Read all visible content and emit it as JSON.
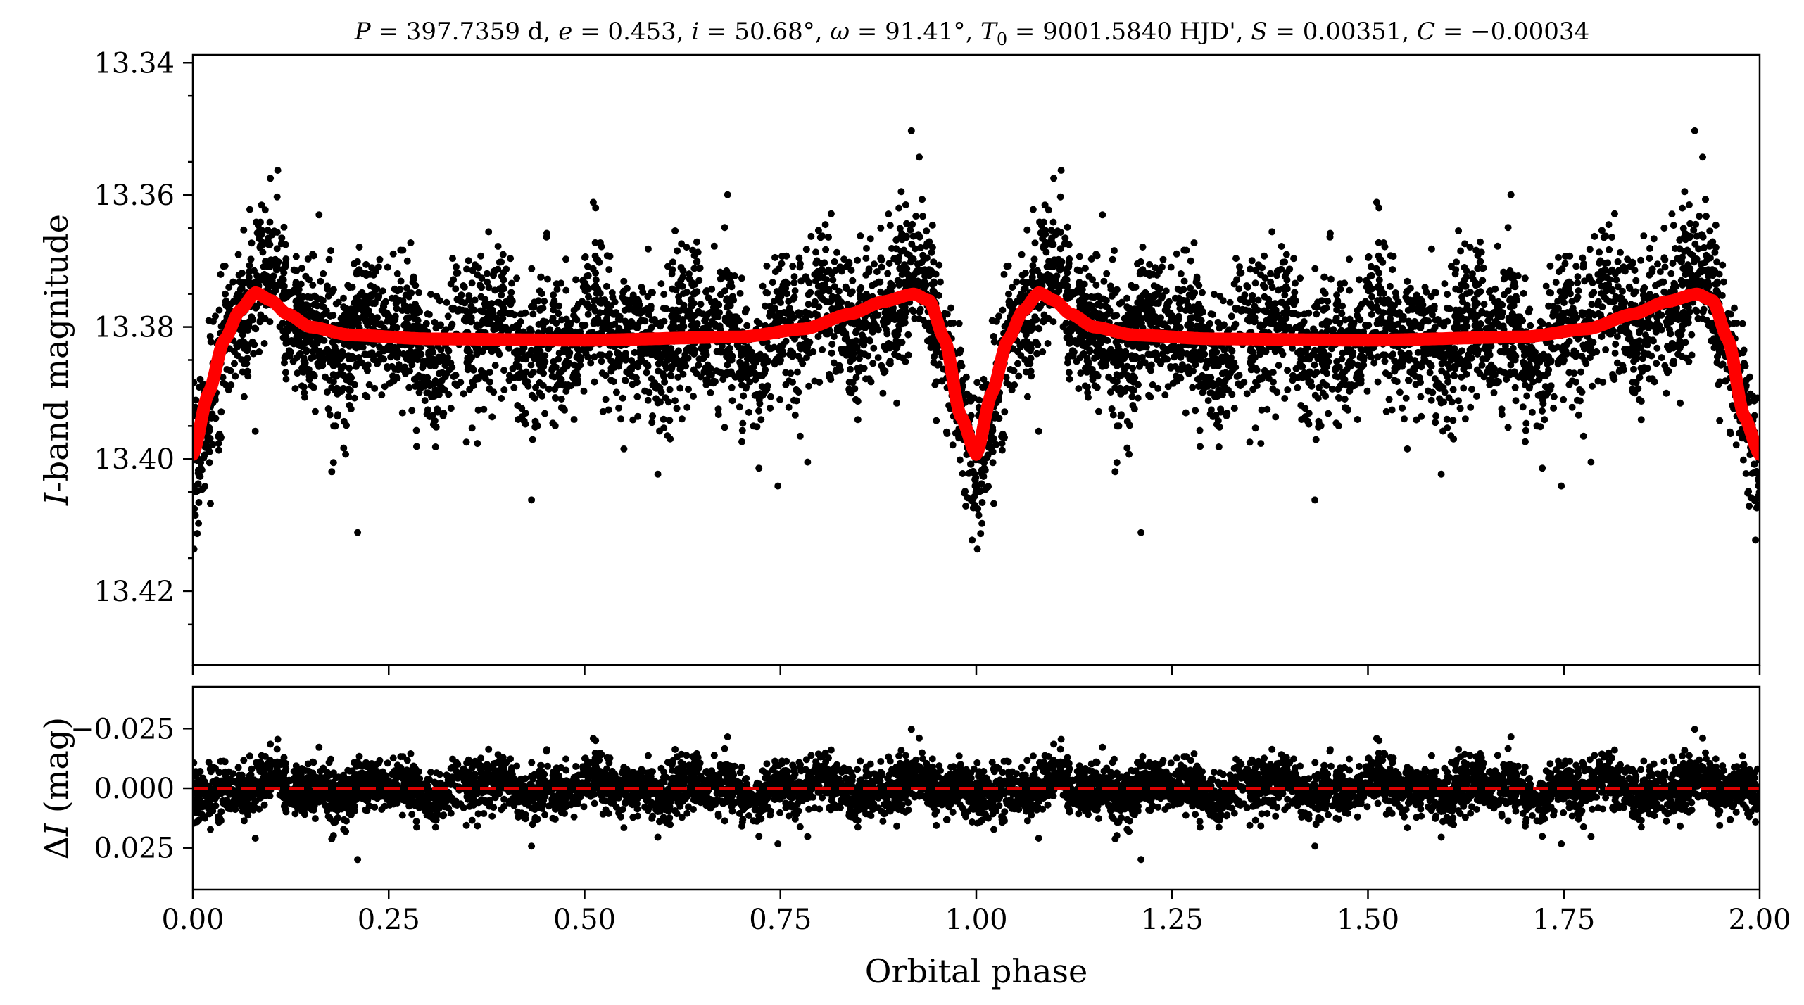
{
  "chart_data": [
    {
      "type": "scatter",
      "panel": "top",
      "title": "P = 397.7359 d, e = 0.453, i = 50.68°, ω = 91.41°, T0 = 9001.5840 HJD', S = 0.00351, C = −0.00034",
      "title_parts": {
        "P_sym": "P",
        "P_val": " = 397.7359 d, ",
        "e_sym": "e",
        "e_val": " = 0.453, ",
        "i_sym": "i",
        "i_val": " = 50.68°, ",
        "w_sym": "ω",
        "w_val": " = 91.41°, ",
        "T_sym": "T",
        "T_sub": "0",
        "T_val": " = 9001.5840 HJD', ",
        "S_sym": "S",
        "S_val": " = 0.00351, ",
        "C_sym": "C",
        "C_val": " = −0.00034"
      },
      "ylabel_italic": "I",
      "ylabel_rest": "-band magnitude",
      "y_inverted": true,
      "xlim": [
        0.0,
        2.0
      ],
      "ylim": [
        13.3388,
        13.4312
      ],
      "yticks": [
        13.34,
        13.36,
        13.38,
        13.4,
        13.42
      ],
      "ytick_labels": [
        "13.34",
        "13.36",
        "13.38",
        "13.40",
        "13.42"
      ],
      "xticks": [
        0.0,
        0.25,
        0.5,
        0.75,
        1.0,
        1.25,
        1.5,
        1.75,
        2.0
      ],
      "series": [
        {
          "role": "observations",
          "color": "#000000",
          "marker": "dot",
          "baseline": 13.3785,
          "scatter_sigma": 0.0085,
          "points_per_phase": 3200,
          "note_visible_outliers_x": [
            0.72,
            0.805,
            0.855,
            0.11,
            1.72,
            1.855,
            1.805
          ]
        },
        {
          "role": "model",
          "color": "#ff0000",
          "samples": [
            [
              0.0,
              13.3993
            ],
            [
              0.02,
              13.39
            ],
            [
              0.04,
              13.382
            ],
            [
              0.06,
              13.3775
            ],
            [
              0.08,
              13.3748
            ],
            [
              0.1,
              13.376
            ],
            [
              0.12,
              13.378
            ],
            [
              0.15,
              13.38
            ],
            [
              0.2,
              13.3812
            ],
            [
              0.3,
              13.3818
            ],
            [
              0.5,
              13.382
            ],
            [
              0.7,
              13.3815
            ],
            [
              0.78,
              13.3803
            ],
            [
              0.84,
              13.378
            ],
            [
              0.88,
              13.3762
            ],
            [
              0.92,
              13.375
            ],
            [
              0.94,
              13.376
            ],
            [
              0.96,
              13.382
            ],
            [
              0.98,
              13.3935
            ],
            [
              1.0,
              13.3993
            ]
          ]
        }
      ]
    },
    {
      "type": "scatter",
      "panel": "bottom",
      "xlabel": "Orbital phase",
      "ylabel_prefix": "Δ",
      "ylabel_italic": "I",
      "ylabel_rest": " (mag)",
      "y_inverted": true,
      "xlim": [
        0.0,
        2.0
      ],
      "ylim": [
        -0.0425,
        0.0425
      ],
      "yticks": [
        -0.025,
        0.0,
        0.025
      ],
      "ytick_labels": [
        "−0.025",
        "0.000",
        "0.025"
      ],
      "xticks": [
        0.0,
        0.25,
        0.5,
        0.75,
        1.0,
        1.25,
        1.5,
        1.75,
        2.0
      ],
      "xtick_labels": [
        "0.00",
        "0.25",
        "0.50",
        "0.75",
        "1.00",
        "1.25",
        "1.50",
        "1.75",
        "2.00"
      ],
      "series": [
        {
          "role": "residuals",
          "color": "#000000",
          "marker": "dot",
          "scatter_sigma": 0.0085,
          "points_per_phase": 3200
        },
        {
          "role": "zero-line",
          "color": "#dd0000",
          "linestyle": "dashed",
          "y": 0.0
        }
      ]
    }
  ]
}
